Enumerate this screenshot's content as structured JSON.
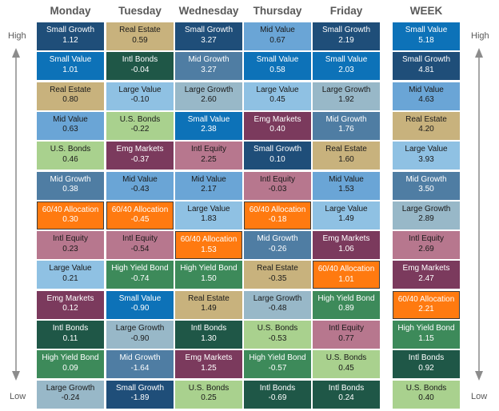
{
  "axis_labels": {
    "high": "High",
    "low": "Low"
  },
  "colors": {
    "Small Growth": "#1f4e79",
    "Small Value": "#0d72b8",
    "Real Estate": "#c8b27d",
    "Mid Value": "#6aa5d6",
    "U.S. Bonds": "#a9d18e",
    "Mid Growth": "#4f7da3",
    "60/40 Allocation": "#ff7a10",
    "Intl Equity": "#b7778e",
    "Large Value": "#8fc1e3",
    "Emg Markets": "#7b3a5d",
    "Intl Bonds": "#1f5747",
    "High Yield Bond": "#3d8a5a",
    "Large Growth": "#98b8c8"
  },
  "light_text": [
    "Real Estate",
    "U.S. Bonds",
    "Large Value",
    "Large Growth",
    "Mid Value",
    "Intl Equity"
  ],
  "chart_data": {
    "type": "table",
    "columns": [
      {
        "header": "Monday",
        "cells": [
          {
            "name": "Small Growth",
            "value": "1.12"
          },
          {
            "name": "Small Value",
            "value": "1.01"
          },
          {
            "name": "Real Estate",
            "value": "0.80"
          },
          {
            "name": "Mid Value",
            "value": "0.63"
          },
          {
            "name": "U.S. Bonds",
            "value": "0.46"
          },
          {
            "name": "Mid Growth",
            "value": "0.38"
          },
          {
            "name": "60/40 Allocation",
            "value": "0.30"
          },
          {
            "name": "Intl Equity",
            "value": "0.23"
          },
          {
            "name": "Large Value",
            "value": "0.21"
          },
          {
            "name": "Emg Markets",
            "value": "0.12"
          },
          {
            "name": "Intl Bonds",
            "value": "0.11"
          },
          {
            "name": "High Yield Bond",
            "value": "0.09"
          },
          {
            "name": "Large Growth",
            "value": "-0.24"
          }
        ]
      },
      {
        "header": "Tuesday",
        "cells": [
          {
            "name": "Real Estate",
            "value": "0.59"
          },
          {
            "name": "Intl Bonds",
            "value": "-0.04"
          },
          {
            "name": "Large Value",
            "value": "-0.10"
          },
          {
            "name": "U.S. Bonds",
            "value": "-0.22"
          },
          {
            "name": "Emg Markets",
            "value": "-0.37"
          },
          {
            "name": "Mid Value",
            "value": "-0.43"
          },
          {
            "name": "60/40 Allocation",
            "value": "-0.45"
          },
          {
            "name": "Intl Equity",
            "value": "-0.54"
          },
          {
            "name": "High Yield Bond",
            "value": "-0.74"
          },
          {
            "name": "Small Value",
            "value": "-0.90"
          },
          {
            "name": "Large Growth",
            "value": "-0.90"
          },
          {
            "name": "Mid Growth",
            "value": "-1.64"
          },
          {
            "name": "Small Growth",
            "value": "-1.89"
          }
        ]
      },
      {
        "header": "Wednesday",
        "cells": [
          {
            "name": "Small Growth",
            "value": "3.27"
          },
          {
            "name": "Mid Growth",
            "value": "3.27"
          },
          {
            "name": "Large Growth",
            "value": "2.60"
          },
          {
            "name": "Small Value",
            "value": "2.38"
          },
          {
            "name": "Intl Equity",
            "value": "2.25"
          },
          {
            "name": "Mid Value",
            "value": "2.17"
          },
          {
            "name": "Large Value",
            "value": "1.83"
          },
          {
            "name": "60/40 Allocation",
            "value": "1.53"
          },
          {
            "name": "High Yield Bond",
            "value": "1.50"
          },
          {
            "name": "Real Estate",
            "value": "1.49"
          },
          {
            "name": "Intl Bonds",
            "value": "1.30"
          },
          {
            "name": "Emg Markets",
            "value": "1.25"
          },
          {
            "name": "U.S. Bonds",
            "value": "0.25"
          }
        ]
      },
      {
        "header": "Thursday",
        "cells": [
          {
            "name": "Mid Value",
            "value": "0.67"
          },
          {
            "name": "Small Value",
            "value": "0.58"
          },
          {
            "name": "Large Value",
            "value": "0.45"
          },
          {
            "name": "Emg Markets",
            "value": "0.40"
          },
          {
            "name": "Small Growth",
            "value": "0.10"
          },
          {
            "name": "Intl Equity",
            "value": "-0.03"
          },
          {
            "name": "60/40 Allocation",
            "value": "-0.18"
          },
          {
            "name": "Mid Growth",
            "value": "-0.26"
          },
          {
            "name": "Real Estate",
            "value": "-0.35"
          },
          {
            "name": "Large Growth",
            "value": "-0.48"
          },
          {
            "name": "U.S. Bonds",
            "value": "-0.53"
          },
          {
            "name": "High Yield Bond",
            "value": "-0.57"
          },
          {
            "name": "Intl Bonds",
            "value": "-0.69"
          }
        ]
      },
      {
        "header": "Friday",
        "cells": [
          {
            "name": "Small Growth",
            "value": "2.19"
          },
          {
            "name": "Small Value",
            "value": "2.03"
          },
          {
            "name": "Large Growth",
            "value": "1.92"
          },
          {
            "name": "Mid Growth",
            "value": "1.76"
          },
          {
            "name": "Real Estate",
            "value": "1.60"
          },
          {
            "name": "Mid Value",
            "value": "1.53"
          },
          {
            "name": "Large Value",
            "value": "1.49"
          },
          {
            "name": "Emg Markets",
            "value": "1.06"
          },
          {
            "name": "60/40 Allocation",
            "value": "1.01"
          },
          {
            "name": "High Yield Bond",
            "value": "0.89"
          },
          {
            "name": "Intl Equity",
            "value": "0.77"
          },
          {
            "name": "U.S. Bonds",
            "value": "0.45"
          },
          {
            "name": "Intl Bonds",
            "value": "0.24"
          }
        ]
      },
      {
        "header": "WEEK",
        "cells": [
          {
            "name": "Small Value",
            "value": "5.18"
          },
          {
            "name": "Small Growth",
            "value": "4.81"
          },
          {
            "name": "Mid Value",
            "value": "4.63"
          },
          {
            "name": "Real Estate",
            "value": "4.20"
          },
          {
            "name": "Large Value",
            "value": "3.93"
          },
          {
            "name": "Mid Growth",
            "value": "3.50"
          },
          {
            "name": "Large Growth",
            "value": "2.89"
          },
          {
            "name": "Intl Equity",
            "value": "2.69"
          },
          {
            "name": "Emg Markets",
            "value": "2.47"
          },
          {
            "name": "60/40 Allocation",
            "value": "2.21"
          },
          {
            "name": "High Yield Bond",
            "value": "1.15"
          },
          {
            "name": "Intl Bonds",
            "value": "0.92"
          },
          {
            "name": "U.S. Bonds",
            "value": "0.40"
          }
        ]
      }
    ]
  }
}
